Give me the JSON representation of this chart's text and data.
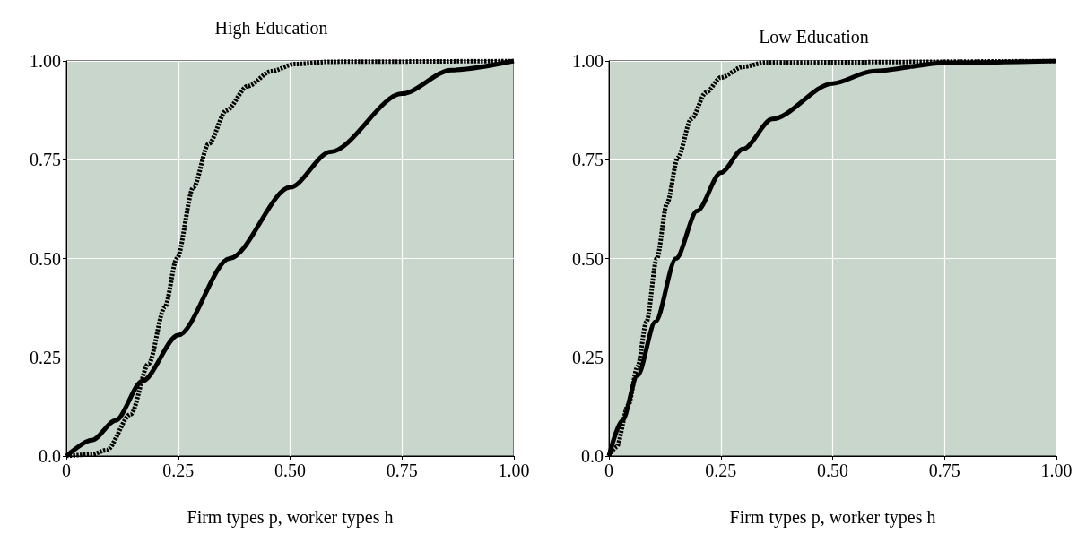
{
  "chart_data": [
    {
      "type": "line",
      "title": "High Education",
      "xlabel": "Firm types p, worker types h",
      "xlim": [
        0,
        1
      ],
      "ylim": [
        0,
        1
      ],
      "xticks": [
        0,
        {
          "value": 0.25,
          "label": "0.25"
        },
        {
          "value": 0.5,
          "label": "0.50"
        },
        {
          "value": 0.75,
          "label": "0.75"
        },
        {
          "value": 1,
          "label": "1.00"
        }
      ],
      "yticks": [
        {
          "value": 0,
          "label": "0.0"
        },
        {
          "value": 0.25,
          "label": "0.25"
        },
        {
          "value": 0.5,
          "label": "0.50"
        },
        {
          "value": 0.75,
          "label": "0.75"
        },
        {
          "value": 1,
          "label": "1.00"
        }
      ],
      "grid": true,
      "marker": "none",
      "series": [
        {
          "color": "#000000",
          "line_style": "solid",
          "x": [
            0,
            0.057,
            0.11,
            0.17,
            0.25,
            0.365,
            0.5,
            0.59,
            0.75,
            0.86,
            1
          ],
          "values": [
            0,
            0.04,
            0.09,
            0.19,
            0.306,
            0.5,
            0.68,
            0.77,
            0.917,
            0.977,
            1
          ]
        },
        {
          "color": "#000000",
          "line_style": "dashed",
          "x": [
            0,
            0.057,
            0.09,
            0.144,
            0.184,
            0.22,
            0.247,
            0.284,
            0.318,
            0.358,
            0.405,
            0.458,
            0.51,
            0.59,
            1
          ],
          "values": [
            0,
            0.004,
            0.015,
            0.106,
            0.234,
            0.377,
            0.5,
            0.68,
            0.79,
            0.875,
            0.936,
            0.974,
            0.992,
            0.998,
            1
          ]
        }
      ]
    },
    {
      "type": "line",
      "title": "Low Education",
      "xlabel": "Firm types p, worker types h",
      "xlim": [
        0,
        1
      ],
      "ylim": [
        0,
        1
      ],
      "xticks": [
        0,
        {
          "value": 0.25,
          "label": "0.25"
        },
        {
          "value": 0.5,
          "label": "0.50"
        },
        {
          "value": 0.75,
          "label": "0.75"
        },
        {
          "value": 1,
          "label": "1.00"
        }
      ],
      "yticks": [
        {
          "value": 0,
          "label": "0.0"
        },
        {
          "value": 0.25,
          "label": "0.25"
        },
        {
          "value": 0.5,
          "label": "0.50"
        },
        {
          "value": 0.75,
          "label": "0.75"
        },
        {
          "value": 1,
          "label": "1.00"
        }
      ],
      "grid": true,
      "marker": "none",
      "series": [
        {
          "color": "#000000",
          "line_style": "solid",
          "x": [
            0,
            0.03,
            0.064,
            0.104,
            0.15,
            0.197,
            0.25,
            0.3,
            0.365,
            0.5,
            0.59,
            0.75,
            1
          ],
          "values": [
            0,
            0.09,
            0.204,
            0.34,
            0.5,
            0.62,
            0.717,
            0.777,
            0.853,
            0.943,
            0.974,
            0.995,
            1
          ]
        },
        {
          "color": "#000000",
          "line_style": "dashed",
          "x": [
            0,
            0.017,
            0.043,
            0.064,
            0.084,
            0.107,
            0.13,
            0.154,
            0.184,
            0.217,
            0.25,
            0.3,
            0.35,
            1
          ],
          "values": [
            0,
            0.023,
            0.128,
            0.226,
            0.34,
            0.5,
            0.64,
            0.755,
            0.853,
            0.92,
            0.958,
            0.985,
            0.996,
            1
          ]
        }
      ]
    }
  ]
}
